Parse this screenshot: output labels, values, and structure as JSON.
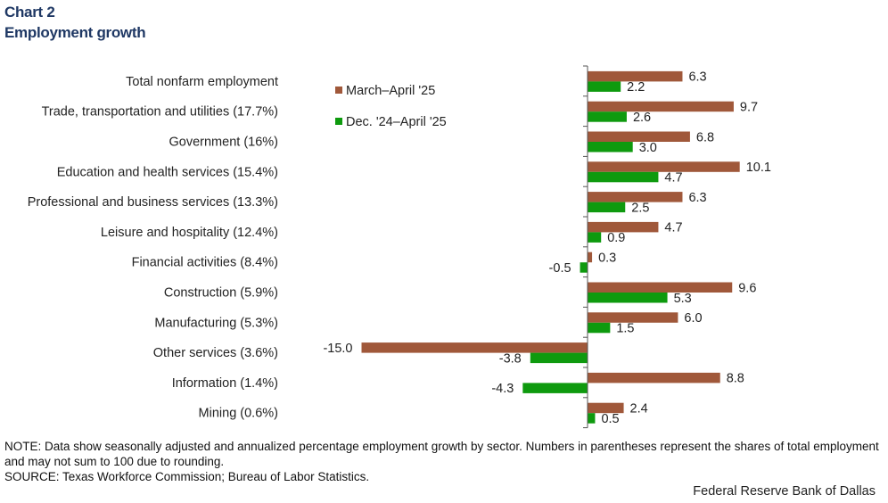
{
  "header": {
    "chart_number": "Chart 2",
    "title": "Employment growth"
  },
  "footer": {
    "note": "NOTE: Data show seasonally adjusted and annualized percentage employment growth by sector. Numbers in parentheses represent the shares of total employment and may not sum to 100 due to rounding.",
    "source": "SOURCE: Texas Workforce Commission; Bureau of Labor Statistics.",
    "credit": "Federal Reserve Bank of Dallas"
  },
  "chart_data": {
    "type": "bar",
    "orientation": "horizontal",
    "title": "Employment growth",
    "categories": [
      "Total nonfarm employment",
      "Trade, transportation and utilities (17.7%)",
      "Government (16%)",
      "Education and health services (15.4%)",
      "Professional and business services (13.3%)",
      "Leisure and hospitality (12.4%)",
      "Financial activities (8.4%)",
      "Construction (5.9%)",
      "Manufacturing (5.3%)",
      "Other services (3.6%)",
      "Information (1.4%)",
      "Mining (0.6%)"
    ],
    "series": [
      {
        "name": "March–April '25",
        "color": "#a0583a",
        "values": [
          6.3,
          9.7,
          6.8,
          10.1,
          6.3,
          4.7,
          0.3,
          9.6,
          6.0,
          -15.0,
          8.8,
          2.4
        ],
        "labels": [
          "6.3",
          "9.7",
          "6.8",
          "10.1",
          "6.3",
          "4.7",
          "0.3",
          "9.6",
          "6.0",
          "-15.0",
          "8.8",
          "2.4"
        ]
      },
      {
        "name": "Dec. '24–April '25",
        "color": "#0e9a0e",
        "values": [
          2.2,
          2.6,
          3.0,
          4.7,
          2.5,
          0.9,
          -0.5,
          5.3,
          1.5,
          -3.8,
          -4.3,
          0.5
        ],
        "labels": [
          "2.2",
          "2.6",
          "3.0",
          "4.7",
          "2.5",
          "0.9",
          "-0.5",
          "5.3",
          "1.5",
          "-3.8",
          "-4.3",
          "0.5"
        ]
      }
    ],
    "legend_position": "top-left of plot",
    "grid": false,
    "axis_line": "vertical zero line with tick marks"
  }
}
